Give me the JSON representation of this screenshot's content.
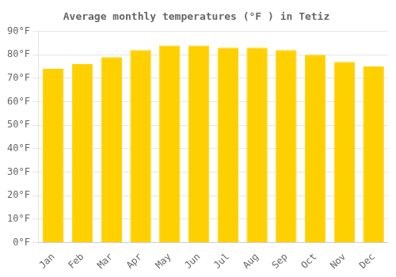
{
  "chart_data": {
    "type": "bar",
    "title": "Average monthly temperatures (°F ) in Tetiz",
    "categories": [
      "Jan",
      "Feb",
      "Mar",
      "Apr",
      "May",
      "Jun",
      "Jul",
      "Aug",
      "Sep",
      "Oct",
      "Nov",
      "Dec"
    ],
    "values": [
      74,
      76,
      79,
      82,
      84,
      84,
      83,
      83,
      82,
      80,
      77,
      75
    ],
    "color": "#FFD000",
    "ylim": [
      0,
      90
    ],
    "yticks": [
      {
        "value": 0,
        "label": "0°F"
      },
      {
        "value": 10,
        "label": "10°F"
      },
      {
        "value": 20,
        "label": "20°F"
      },
      {
        "value": 30,
        "label": "30°F"
      },
      {
        "value": 40,
        "label": "40°F"
      },
      {
        "value": 50,
        "label": "50°F"
      },
      {
        "value": 60,
        "label": "60°F"
      },
      {
        "value": 70,
        "label": "70°F"
      },
      {
        "value": 80,
        "label": "80°F"
      },
      {
        "value": 90,
        "label": "90°F"
      }
    ],
    "grid": true
  }
}
